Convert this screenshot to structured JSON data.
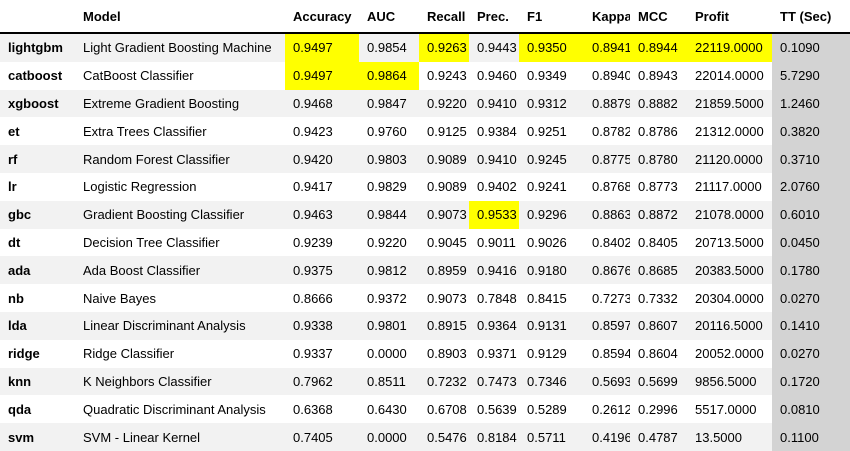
{
  "colors": {
    "highlight": "#ffff00",
    "tt_column": "#d3d3d3",
    "stripe": "#f2f2f2",
    "header_border": "#000000"
  },
  "table": {
    "index_header": "",
    "columns": [
      "Model",
      "Accuracy",
      "AUC",
      "Recall",
      "Prec.",
      "F1",
      "Kappa",
      "MCC",
      "Profit",
      "TT (Sec)"
    ],
    "rows": [
      {
        "id": "lightgbm",
        "model": "Light Gradient Boosting Machine",
        "values": [
          "0.9497",
          "0.9854",
          "0.9263",
          "0.9443",
          "0.9350",
          "0.8941",
          "0.8944",
          "22119.0000",
          "0.1090"
        ],
        "highlights": [
          0,
          2,
          4,
          5,
          6,
          7
        ]
      },
      {
        "id": "catboost",
        "model": "CatBoost Classifier",
        "values": [
          "0.9497",
          "0.9864",
          "0.9243",
          "0.9460",
          "0.9349",
          "0.8940",
          "0.8943",
          "22014.0000",
          "5.7290"
        ],
        "highlights": [
          0,
          1
        ]
      },
      {
        "id": "xgboost",
        "model": "Extreme Gradient Boosting",
        "values": [
          "0.9468",
          "0.9847",
          "0.9220",
          "0.9410",
          "0.9312",
          "0.8879",
          "0.8882",
          "21859.5000",
          "1.2460"
        ],
        "highlights": []
      },
      {
        "id": "et",
        "model": "Extra Trees Classifier",
        "values": [
          "0.9423",
          "0.9760",
          "0.9125",
          "0.9384",
          "0.9251",
          "0.8782",
          "0.8786",
          "21312.0000",
          "0.3820"
        ],
        "highlights": []
      },
      {
        "id": "rf",
        "model": "Random Forest Classifier",
        "values": [
          "0.9420",
          "0.9803",
          "0.9089",
          "0.9410",
          "0.9245",
          "0.8775",
          "0.8780",
          "21120.0000",
          "0.3710"
        ],
        "highlights": []
      },
      {
        "id": "lr",
        "model": "Logistic Regression",
        "values": [
          "0.9417",
          "0.9829",
          "0.9089",
          "0.9402",
          "0.9241",
          "0.8768",
          "0.8773",
          "21117.0000",
          "2.0760"
        ],
        "highlights": []
      },
      {
        "id": "gbc",
        "model": "Gradient Boosting Classifier",
        "values": [
          "0.9463",
          "0.9844",
          "0.9073",
          "0.9533",
          "0.9296",
          "0.8863",
          "0.8872",
          "21078.0000",
          "0.6010"
        ],
        "highlights": [
          3
        ]
      },
      {
        "id": "dt",
        "model": "Decision Tree Classifier",
        "values": [
          "0.9239",
          "0.9220",
          "0.9045",
          "0.9011",
          "0.9026",
          "0.8402",
          "0.8405",
          "20713.5000",
          "0.0450"
        ],
        "highlights": []
      },
      {
        "id": "ada",
        "model": "Ada Boost Classifier",
        "values": [
          "0.9375",
          "0.9812",
          "0.8959",
          "0.9416",
          "0.9180",
          "0.8676",
          "0.8685",
          "20383.5000",
          "0.1780"
        ],
        "highlights": []
      },
      {
        "id": "nb",
        "model": "Naive Bayes",
        "values": [
          "0.8666",
          "0.9372",
          "0.9073",
          "0.7848",
          "0.8415",
          "0.7273",
          "0.7332",
          "20304.0000",
          "0.0270"
        ],
        "highlights": []
      },
      {
        "id": "lda",
        "model": "Linear Discriminant Analysis",
        "values": [
          "0.9338",
          "0.9801",
          "0.8915",
          "0.9364",
          "0.9131",
          "0.8597",
          "0.8607",
          "20116.5000",
          "0.1410"
        ],
        "highlights": []
      },
      {
        "id": "ridge",
        "model": "Ridge Classifier",
        "values": [
          "0.9337",
          "0.0000",
          "0.8903",
          "0.9371",
          "0.9129",
          "0.8594",
          "0.8604",
          "20052.0000",
          "0.0270"
        ],
        "highlights": []
      },
      {
        "id": "knn",
        "model": "K Neighbors Classifier",
        "values": [
          "0.7962",
          "0.8511",
          "0.7232",
          "0.7473",
          "0.7346",
          "0.5693",
          "0.5699",
          "9856.5000",
          "0.1720"
        ],
        "highlights": []
      },
      {
        "id": "qda",
        "model": "Quadratic Discriminant Analysis",
        "values": [
          "0.6368",
          "0.6430",
          "0.6708",
          "0.5639",
          "0.5289",
          "0.2612",
          "0.2996",
          "5517.0000",
          "0.0810"
        ],
        "highlights": []
      },
      {
        "id": "svm",
        "model": "SVM - Linear Kernel",
        "values": [
          "0.7405",
          "0.0000",
          "0.5476",
          "0.8184",
          "0.5711",
          "0.4196",
          "0.4787",
          "13.5000",
          "0.1100"
        ],
        "highlights": []
      }
    ]
  }
}
